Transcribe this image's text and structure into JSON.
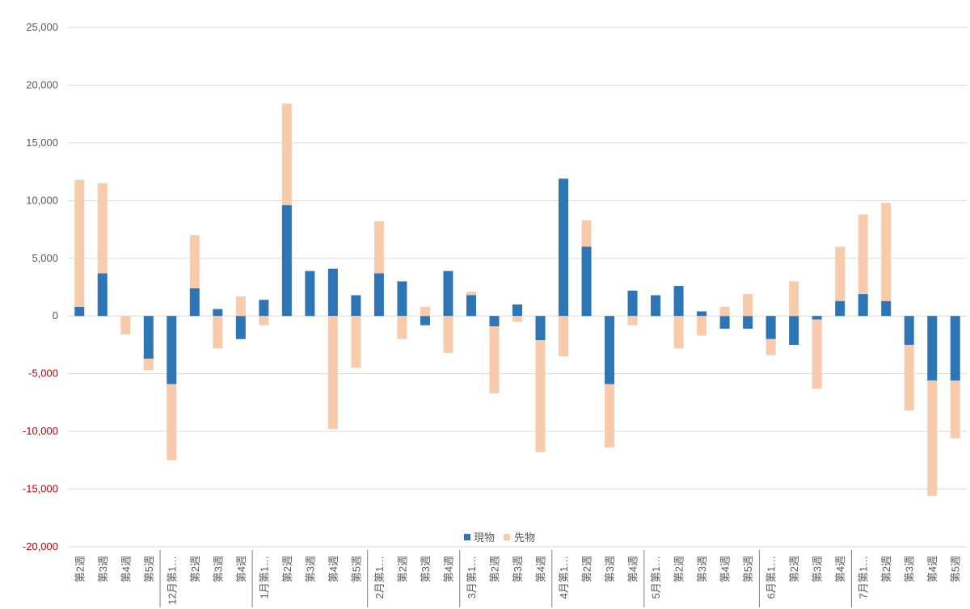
{
  "chart_data": {
    "type": "bar",
    "stacked": true,
    "title": "",
    "xlabel": "",
    "ylabel": "",
    "ylim": [
      -20000,
      25000
    ],
    "yticks": [
      -20000,
      -15000,
      -10000,
      -5000,
      0,
      5000,
      10000,
      15000,
      20000,
      25000
    ],
    "ytick_labels": [
      "-20,000",
      "-15,000",
      "-10,000",
      "-5,000",
      "0",
      "5,000",
      "10,000",
      "15,000",
      "20,000",
      "25,000"
    ],
    "negative_tick_color": "#c00000",
    "grid": true,
    "legend_position": "bottom",
    "categories": [
      "第2週",
      "第3週",
      "第4週",
      "第5週",
      "12月第1週",
      "第2週",
      "第3週",
      "第4週",
      "1月第1週",
      "第2週",
      "第3週",
      "第4週",
      "第5週",
      "2月第1週",
      "第2週",
      "第3週",
      "第4週",
      "3月第1週",
      "第2週",
      "第3週",
      "第4週",
      "4月第1週",
      "第2週",
      "第3週",
      "第4週",
      "5月第1週",
      "第2週",
      "第3週",
      "第4週",
      "第5週",
      "6月第1週",
      "第2週",
      "第3週",
      "第4週",
      "7月第1週",
      "第2週",
      "第3週",
      "第4週",
      "第5週"
    ],
    "category_display": [
      "第2週",
      "第3週",
      "第4週",
      "第5週",
      "12月第1…",
      "第2週",
      "第3週",
      "第4週",
      "1月第1…",
      "第2週",
      "第3週",
      "第4週",
      "第5週",
      "2月第1…",
      "第2週",
      "第3週",
      "第4週",
      "3月第1…",
      "第2週",
      "第3週",
      "第4週",
      "4月第1…",
      "第2週",
      "第3週",
      "第4週",
      "5月第1…",
      "第2週",
      "第3週",
      "第4週",
      "第5週",
      "6月第1…",
      "第2週",
      "第3週",
      "第4週",
      "7月第1…",
      "第2週",
      "第3週",
      "第4週",
      "第5週"
    ],
    "month_separators_after": [
      3,
      7,
      12,
      16,
      20,
      24,
      29,
      33
    ],
    "series": [
      {
        "name": "現物",
        "color": "#2e75b6",
        "values": [
          800,
          3700,
          0,
          -3700,
          -5900,
          2400,
          600,
          -2000,
          1400,
          9600,
          3900,
          4100,
          1800,
          3700,
          3000,
          -800,
          3900,
          1800,
          -900,
          1000,
          -2100,
          11900,
          6000,
          -5900,
          2200,
          1800,
          2600,
          400,
          -1100,
          -1100,
          -2000,
          -2500,
          -300,
          1300,
          1900,
          1300,
          -2500,
          -5600,
          -5600
        ]
      },
      {
        "name": "先物",
        "color": "#f8cbad",
        "values": [
          11000,
          7800,
          -1600,
          -1000,
          -6600,
          4600,
          -2800,
          1700,
          -800,
          8800,
          0,
          -9800,
          -4500,
          4500,
          -2000,
          800,
          -3200,
          300,
          -5800,
          -500,
          -9700,
          -3500,
          2300,
          -5500,
          -800,
          0,
          -2800,
          -1700,
          800,
          1900,
          -1400,
          3000,
          -6000,
          4700,
          6900,
          8500,
          -5700,
          -10000,
          -5000
        ]
      }
    ]
  }
}
